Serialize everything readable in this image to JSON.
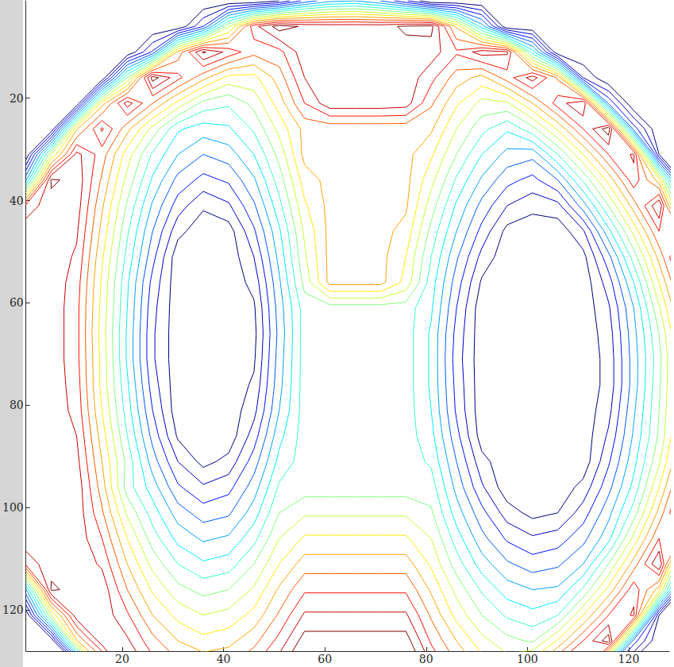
{
  "chart_data": {
    "type": "contour",
    "x": [
      1,
      6,
      11,
      16,
      21,
      26,
      31,
      36,
      41,
      46,
      51,
      56,
      61,
      66,
      71,
      76,
      81,
      86,
      91,
      96,
      101,
      106,
      111,
      116,
      121,
      126,
      131
    ],
    "y": [
      1,
      6,
      11,
      16,
      21,
      26,
      31,
      36,
      41,
      46,
      51,
      56,
      61,
      66,
      71,
      76,
      81,
      86,
      91,
      96,
      101,
      106,
      111,
      116,
      121,
      126,
      131
    ],
    "z": [
      [
        0,
        0,
        0,
        0,
        0,
        0,
        0,
        0,
        0,
        0,
        6,
        20,
        28,
        30,
        24,
        13,
        0,
        0,
        0,
        0,
        0,
        0,
        0,
        0,
        0,
        0,
        0
      ],
      [
        0,
        0,
        0,
        0,
        0,
        0,
        0,
        18,
        53,
        82,
        93,
        89,
        88,
        88,
        88,
        91,
        92,
        65,
        33,
        0,
        0,
        0,
        0,
        0,
        0,
        0,
        0
      ],
      [
        0,
        0,
        0,
        0,
        0,
        19,
        68,
        91,
        82,
        74,
        76,
        88,
        88,
        88,
        88,
        88,
        87,
        79,
        87,
        85,
        39,
        0,
        0,
        0,
        0,
        0,
        0
      ],
      [
        0,
        0,
        0,
        0,
        48,
        93,
        80,
        68,
        58,
        58,
        69,
        84,
        88,
        88,
        88,
        88,
        80,
        69,
        64,
        75,
        87,
        71,
        12,
        0,
        0,
        0,
        0
      ],
      [
        0,
        0,
        0,
        63,
        87,
        72,
        58,
        46,
        43,
        50,
        63,
        78,
        88,
        88,
        88,
        87,
        73,
        61,
        52,
        53,
        66,
        81,
        90,
        23,
        0,
        0,
        0
      ],
      [
        0,
        0,
        65,
        85,
        68,
        52,
        37,
        33,
        35,
        43,
        56,
        68,
        68,
        68,
        68,
        68,
        67,
        54,
        44,
        37,
        46,
        61,
        78,
        94,
        21,
        0,
        0
      ],
      [
        0,
        54,
        86,
        75,
        57,
        41,
        30,
        24,
        27,
        36,
        50,
        68,
        68,
        68,
        68,
        68,
        61,
        48,
        36,
        28,
        26,
        42,
        60,
        78,
        85,
        6,
        0
      ],
      [
        29,
        91,
        88,
        71,
        52,
        35,
        22,
        16,
        19,
        29,
        45,
        63,
        68,
        68,
        68,
        68,
        56,
        41,
        29,
        20,
        16,
        24,
        43,
        62,
        82,
        63,
        0
      ],
      [
        80,
        88,
        87,
        67,
        47,
        29,
        15,
        7,
        11,
        23,
        40,
        59,
        68,
        68,
        68,
        67,
        51,
        35,
        22,
        12,
        8,
        10,
        27,
        48,
        69,
        90,
        27
      ],
      [
        88,
        88,
        85,
        64,
        43,
        24,
        8,
        2,
        3,
        17,
        35,
        55,
        68,
        68,
        68,
        64,
        46,
        30,
        16,
        4,
        2,
        2,
        11,
        34,
        56,
        78,
        71
      ],
      [
        88,
        88,
        83,
        61,
        40,
        20,
        2,
        2,
        2,
        12,
        32,
        53,
        68,
        68,
        68,
        60,
        42,
        25,
        10,
        2,
        2,
        2,
        4,
        22,
        45,
        68,
        92
      ],
      [
        88,
        88,
        81,
        59,
        37,
        16,
        2,
        2,
        2,
        8,
        29,
        50,
        68,
        68,
        68,
        58,
        39,
        21,
        5,
        2,
        2,
        2,
        2,
        15,
        36,
        60,
        84
      ],
      [
        88,
        88,
        80,
        58,
        36,
        14,
        2,
        2,
        2,
        5,
        27,
        45,
        45,
        45,
        45,
        45,
        37,
        18,
        2,
        2,
        2,
        2,
        2,
        11,
        30,
        53,
        77
      ],
      [
        88,
        88,
        80,
        57,
        35,
        13,
        2,
        2,
        2,
        4,
        26,
        45,
        45,
        45,
        45,
        45,
        35,
        16,
        2,
        2,
        2,
        2,
        2,
        9,
        28,
        48,
        72
      ],
      [
        88,
        88,
        80,
        58,
        35,
        13,
        2,
        2,
        2,
        5,
        27,
        45,
        45,
        45,
        45,
        45,
        35,
        15,
        2,
        2,
        2,
        2,
        2,
        8,
        27,
        46,
        70
      ],
      [
        88,
        88,
        81,
        58,
        37,
        15,
        2,
        2,
        2,
        7,
        28,
        45,
        45,
        45,
        45,
        45,
        35,
        16,
        2,
        2,
        2,
        2,
        2,
        8,
        27,
        47,
        69
      ],
      [
        88,
        88,
        82,
        60,
        39,
        18,
        2,
        2,
        2,
        10,
        30,
        45,
        45,
        45,
        45,
        45,
        36,
        17,
        2,
        2,
        2,
        2,
        2,
        10,
        29,
        48,
        70
      ],
      [
        88,
        88,
        84,
        63,
        42,
        22,
        5,
        2,
        2,
        15,
        34,
        45,
        45,
        45,
        45,
        45,
        38,
        20,
        3,
        2,
        2,
        2,
        2,
        13,
        31,
        49,
        72
      ],
      [
        88,
        88,
        86,
        66,
        46,
        27,
        12,
        4,
        8,
        21,
        38,
        45,
        45,
        45,
        45,
        45,
        41,
        24,
        8,
        2,
        2,
        2,
        2,
        17,
        34,
        53,
        77
      ],
      [
        88,
        88,
        88,
        69,
        45,
        33,
        19,
        13,
        16,
        27,
        43,
        45,
        45,
        45,
        45,
        45,
        45,
        28,
        13,
        2,
        2,
        2,
        8,
        22,
        38,
        60,
        84
      ],
      [
        88,
        88,
        88,
        73,
        53,
        39,
        27,
        21,
        23,
        33,
        48,
        53,
        53,
        53,
        53,
        53,
        49,
        33,
        20,
        9,
        4,
        6,
        15,
        28,
        45,
        68,
        92
      ],
      [
        88,
        88,
        88,
        78,
        60,
        45,
        34,
        29,
        31,
        40,
        54,
        61,
        61,
        61,
        61,
        61,
        54,
        39,
        26,
        17,
        13,
        15,
        22,
        34,
        56,
        78,
        71
      ],
      [
        80,
        88,
        88,
        83,
        66,
        52,
        42,
        37,
        39,
        48,
        60,
        69,
        69,
        69,
        69,
        69,
        59,
        45,
        33,
        25,
        21,
        23,
        30,
        48,
        69,
        90,
        27
      ],
      [
        29,
        91,
        88,
        88,
        72,
        59,
        50,
        46,
        48,
        55,
        67,
        77,
        77,
        77,
        77,
        77,
        65,
        52,
        41,
        33,
        30,
        31,
        43,
        62,
        82,
        63,
        0
      ],
      [
        0,
        54,
        88,
        88,
        79,
        66,
        58,
        54,
        56,
        62,
        73,
        85,
        85,
        85,
        85,
        85,
        71,
        58,
        48,
        41,
        38,
        42,
        60,
        78,
        85,
        6,
        0
      ],
      [
        0,
        0,
        65,
        88,
        85,
        74,
        66,
        62,
        64,
        70,
        80,
        93,
        93,
        93,
        93,
        93,
        77,
        66,
        56,
        50,
        47,
        61,
        78,
        94,
        21,
        0,
        0
      ],
      [
        0,
        0,
        0,
        63,
        92,
        81,
        74,
        71,
        72,
        78,
        88,
        100,
        101,
        101,
        101,
        101,
        84,
        73,
        64,
        58,
        66,
        81,
        90,
        23,
        0,
        0,
        0
      ]
    ],
    "levels": [
      6,
      12,
      18,
      24,
      30,
      36,
      42,
      48,
      54,
      60,
      66,
      72,
      78,
      84,
      90
    ],
    "colors": [
      "#000080",
      "#0000c8",
      "#0012ff",
      "#005bff",
      "#00a4ff",
      "#00edff",
      "#37ffc8",
      "#80ff80",
      "#c8ff37",
      "#ffed00",
      "#ffa400",
      "#ff5b00",
      "#ff1200",
      "#c80000",
      "#800000"
    ],
    "xlim": [
      1,
      128
    ],
    "ylim": [
      1,
      128
    ],
    "xticks": [
      20,
      40,
      60,
      80,
      100,
      120
    ],
    "yticks": [
      20,
      40,
      60,
      80,
      100,
      120
    ]
  }
}
